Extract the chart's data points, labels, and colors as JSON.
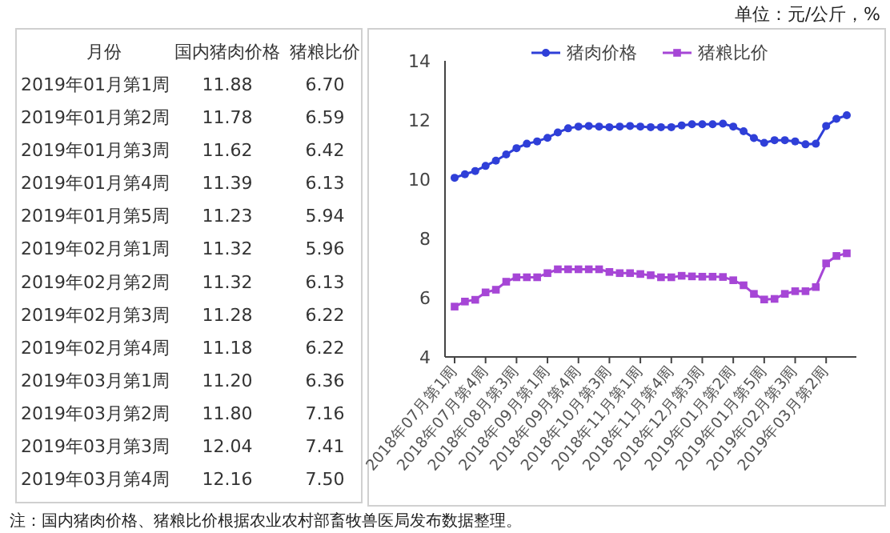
{
  "chart_data": [
    {
      "type": "other",
      "ylabel": "月份",
      "categories": [
        "2019年01月第1周",
        "2019年01月第2周",
        "2019年01月第3周",
        "2019年01月第4周",
        "2019年01月第5周",
        "2019年02月第1周",
        "2019年02月第2周",
        "2019年02月第3周",
        "2019年02月第4周",
        "2019年03月第1周",
        "2019年03月第2周",
        "2019年03月第3周",
        "2019年03月第4周"
      ],
      "series": [
        {
          "name": "国内猪肉价格",
          "values": [
            11.88,
            11.78,
            11.62,
            11.39,
            11.23,
            11.32,
            11.32,
            11.28,
            11.18,
            11.2,
            11.8,
            12.04,
            12.16
          ],
          "value_labels": [
            "11.88",
            "11.78",
            "11.62",
            "11.39",
            "11.23",
            "11.32",
            "11.32",
            "11.28",
            "11.18",
            "11.20",
            "11.80",
            "12.04",
            "12.16"
          ]
        },
        {
          "name": "猪粮比价",
          "values": [
            6.7,
            6.59,
            6.42,
            6.13,
            5.94,
            5.96,
            6.13,
            6.22,
            6.22,
            6.36,
            7.16,
            7.41,
            7.5
          ],
          "value_labels": [
            "6.70",
            "6.59",
            "6.42",
            "6.13",
            "5.94",
            "5.96",
            "6.13",
            "6.22",
            "6.22",
            "6.36",
            "7.16",
            "7.41",
            "7.50"
          ]
        }
      ]
    },
    {
      "type": "line",
      "annotations": [
        "单位：元/公斤，%",
        "注：国内猪肉价格、猪粮比价根据农业农村部畜牧兽医局发布数据整理。"
      ],
      "categories": [
        "2018年07月第1周",
        null,
        null,
        "2018年07月第4周",
        null,
        null,
        "2018年08月第3周",
        null,
        null,
        "2018年09月第1周",
        null,
        null,
        "2018年09月第4周",
        null,
        null,
        "2018年10月第3周",
        null,
        null,
        "2018年11月第1周",
        null,
        null,
        "2018年11月第4周",
        null,
        null,
        "2018年12月第3周",
        null,
        null,
        "2019年01月第2周",
        null,
        null,
        "2019年01月第5周",
        null,
        null,
        "2019年02月第3周",
        null,
        null,
        "2019年03月第2周",
        null,
        null
      ],
      "ylim": [
        4,
        14
      ],
      "yticks": [
        4,
        6,
        8,
        10,
        12,
        14
      ],
      "grid": false,
      "legend": "top",
      "line_style": "solid",
      "series": [
        {
          "name": "猪肉价格",
          "color": "#2f3fd8",
          "marker": "circle",
          "values": [
            10.05,
            10.17,
            10.28,
            10.45,
            10.63,
            10.84,
            11.05,
            11.2,
            11.28,
            11.4,
            11.58,
            11.72,
            11.78,
            11.8,
            11.78,
            11.76,
            11.78,
            11.8,
            11.78,
            11.76,
            11.76,
            11.76,
            11.82,
            11.86,
            11.86,
            11.86,
            11.88,
            11.78,
            11.62,
            11.39,
            11.23,
            11.32,
            11.32,
            11.28,
            11.18,
            11.2,
            11.8,
            12.04,
            12.16
          ]
        },
        {
          "name": "猪粮比价",
          "color": "#a646d6",
          "marker": "square",
          "values": [
            5.7,
            5.87,
            5.93,
            6.18,
            6.27,
            6.54,
            6.69,
            6.69,
            6.69,
            6.83,
            6.96,
            6.96,
            6.96,
            6.96,
            6.96,
            6.87,
            6.83,
            6.83,
            6.8,
            6.76,
            6.69,
            6.69,
            6.74,
            6.72,
            6.71,
            6.71,
            6.7,
            6.59,
            6.42,
            6.13,
            5.94,
            5.96,
            6.13,
            6.22,
            6.22,
            6.36,
            7.16,
            7.41,
            7.5
          ]
        }
      ]
    }
  ]
}
